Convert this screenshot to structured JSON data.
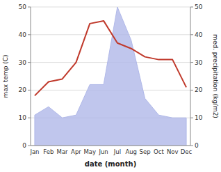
{
  "chart_data": {
    "type": "line",
    "xlabel": "date (month)",
    "ylabel": "max temp (C)",
    "y2label": "med. precipitation (kg/m2)",
    "categories": [
      "Jan",
      "Feb",
      "Mar",
      "Apr",
      "May",
      "Jun",
      "Jul",
      "Aug",
      "Sep",
      "Oct",
      "Nov",
      "Dec"
    ],
    "series": [
      {
        "type": "line",
        "color": "#c0392b",
        "values": [
          18,
          23,
          24,
          30,
          44,
          45,
          37,
          35,
          32,
          31,
          31,
          21
        ]
      },
      {
        "type": "area",
        "axis": "y2",
        "color": "#b0b8e8",
        "values": [
          11,
          14,
          10,
          11,
          22,
          22,
          50,
          38,
          17,
          11,
          10,
          10
        ]
      }
    ],
    "ylim": [
      0,
      50
    ],
    "yticks": [
      0,
      10,
      20,
      30,
      40,
      50
    ],
    "y2lim": [
      0,
      50
    ],
    "y2ticks": [
      0,
      10,
      20,
      30,
      40,
      50
    ],
    "grid": true
  }
}
